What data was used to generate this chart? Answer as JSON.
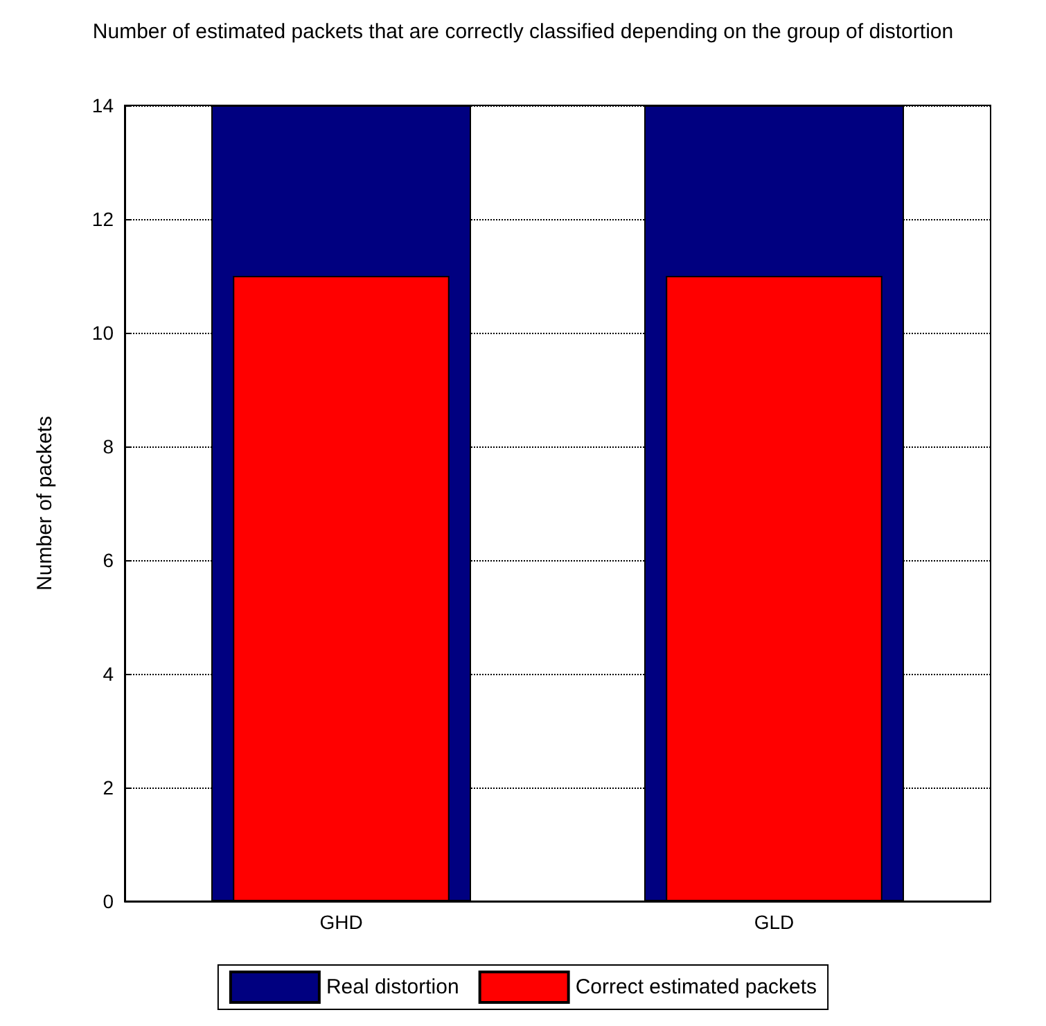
{
  "chart_data": {
    "type": "bar",
    "title": "Number of estimated packets that are correctly classified depending on the group of distortion",
    "ylabel": "Number of packets",
    "categories": [
      "GHD",
      "GLD"
    ],
    "series": [
      {
        "name": "Real distortion",
        "color": "#000080",
        "values": [
          14,
          14
        ]
      },
      {
        "name": "Correct estimated packets",
        "color": "#ff0000",
        "values": [
          11,
          11
        ]
      }
    ],
    "ylim": [
      0,
      14
    ],
    "yticks": [
      0,
      2,
      4,
      6,
      8,
      10,
      12,
      14
    ],
    "grid": "y",
    "legend": "bottom"
  }
}
